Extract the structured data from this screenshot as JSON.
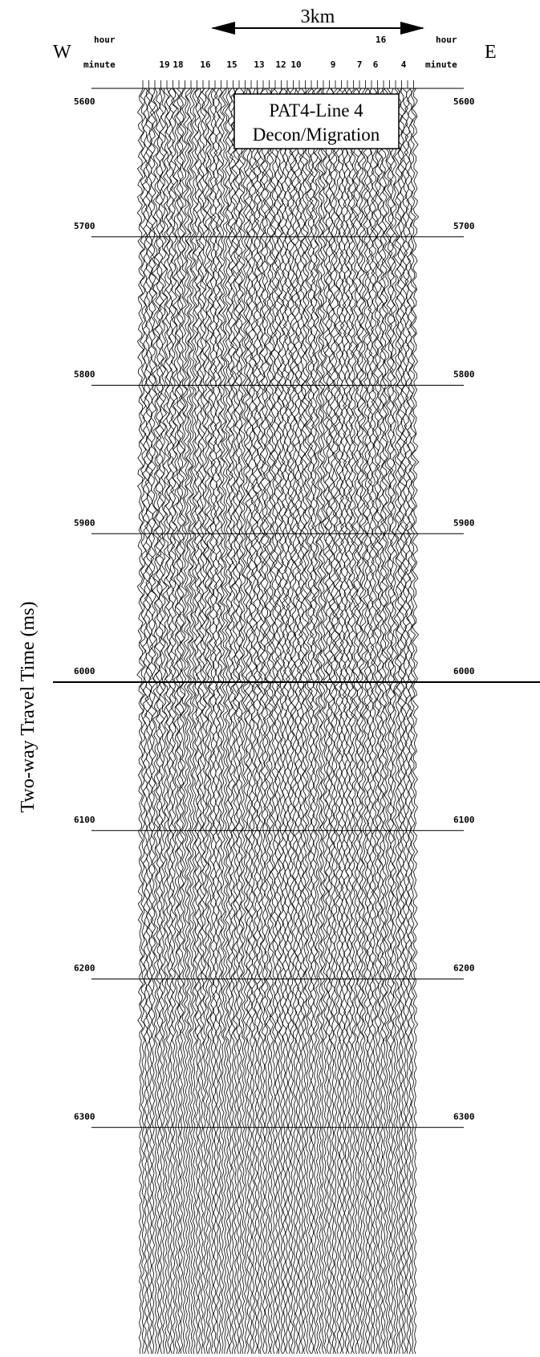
{
  "header": {
    "scale": "3km",
    "west": "W",
    "east": "E",
    "hour_left": "hour",
    "minute_left": "minute",
    "hour_right": "hour",
    "minute_right": "minute",
    "hour_mark": "16",
    "minutes": [
      "19",
      "18",
      "16",
      "15",
      "13",
      "12",
      "10",
      "9",
      "7",
      "6",
      "4"
    ]
  },
  "title_box": {
    "line1": "PAT4-Line 4",
    "line2": "Decon/Migration"
  },
  "time_axis": {
    "label": "Two-way Travel Time (ms)",
    "ticks": [
      5600,
      5700,
      5800,
      5900,
      6000,
      6100,
      6200,
      6300
    ]
  }
}
